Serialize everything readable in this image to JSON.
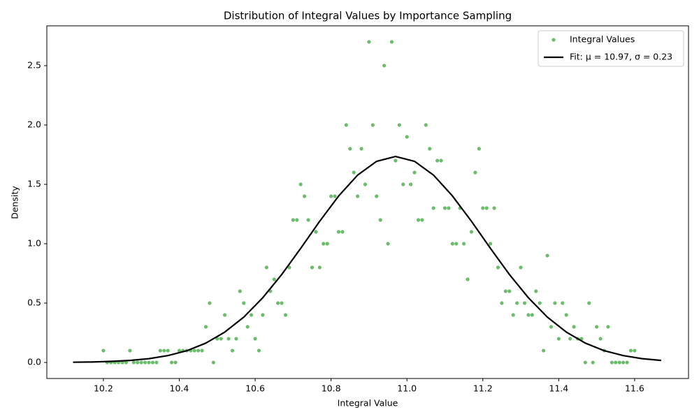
{
  "chart_data": {
    "type": "scatter",
    "title": "Distribution of Integral Values by Importance Sampling",
    "x_label": "Integral Value",
    "y_label": "Density",
    "series": [
      {
        "name": "Integral Values",
        "type": "scatter",
        "color": "#2ca02c",
        "x": [
          10.2,
          10.21,
          10.22,
          10.23,
          10.24,
          10.25,
          10.26,
          10.27,
          10.28,
          10.29,
          10.3,
          10.31,
          10.32,
          10.33,
          10.34,
          10.35,
          10.36,
          10.37,
          10.38,
          10.39,
          10.4,
          10.41,
          10.42,
          10.43,
          10.44,
          10.45,
          10.46,
          10.47,
          10.48,
          10.49,
          10.5,
          10.51,
          10.52,
          10.53,
          10.54,
          10.55,
          10.56,
          10.57,
          10.58,
          10.59,
          10.6,
          10.61,
          10.62,
          10.63,
          10.64,
          10.65,
          10.66,
          10.67,
          10.68,
          10.69,
          10.7,
          10.71,
          10.72,
          10.73,
          10.74,
          10.75,
          10.76,
          10.77,
          10.78,
          10.79,
          10.8,
          10.81,
          10.82,
          10.83,
          10.84,
          10.85,
          10.86,
          10.87,
          10.88,
          10.89,
          10.9,
          10.91,
          10.92,
          10.93,
          10.94,
          10.95,
          10.96,
          10.97,
          10.98,
          10.99,
          11.0,
          11.01,
          11.02,
          11.03,
          11.04,
          11.05,
          11.06,
          11.07,
          11.08,
          11.09,
          11.1,
          11.11,
          11.12,
          11.13,
          11.14,
          11.15,
          11.16,
          11.17,
          11.18,
          11.19,
          11.2,
          11.21,
          11.22,
          11.23,
          11.24,
          11.25,
          11.26,
          11.27,
          11.28,
          11.29,
          11.3,
          11.31,
          11.32,
          11.33,
          11.34,
          11.35,
          11.36,
          11.37,
          11.38,
          11.39,
          11.4,
          11.41,
          11.42,
          11.43,
          11.44,
          11.45,
          11.46,
          11.47,
          11.48,
          11.49,
          11.5,
          11.51,
          11.52,
          11.53,
          11.54,
          11.55,
          11.56,
          11.57,
          11.58,
          11.59,
          11.6
        ],
        "values": [
          0.1,
          0,
          0,
          0,
          0,
          0,
          0,
          0.1,
          0,
          0,
          0,
          0,
          0,
          0,
          0,
          0.1,
          0.1,
          0.1,
          0,
          0,
          0.1,
          0.1,
          0.1,
          0.1,
          0.1,
          0.1,
          0.1,
          0.3,
          0.5,
          0,
          0.2,
          0.2,
          0.4,
          0.2,
          0.1,
          0.2,
          0.6,
          0.5,
          0.3,
          0.4,
          0.2,
          0.1,
          0.4,
          0.8,
          0.6,
          0.7,
          0.5,
          0.5,
          0.4,
          0.8,
          1.2,
          1.2,
          1.5,
          1.4,
          1.2,
          0.8,
          1.1,
          0.8,
          1.0,
          1.0,
          1.4,
          1.4,
          1.1,
          1.1,
          2.0,
          1.8,
          1.6,
          1.4,
          1.8,
          1.5,
          2.7,
          2.0,
          1.4,
          1.2,
          2.5,
          1.0,
          2.7,
          1.7,
          2.0,
          1.5,
          1.9,
          1.5,
          1.6,
          1.2,
          1.2,
          2.0,
          1.8,
          1.3,
          1.7,
          1.7,
          1.3,
          1.3,
          1.0,
          1.0,
          1.3,
          1.0,
          0.7,
          1.1,
          1.6,
          1.8,
          1.3,
          1.3,
          1.0,
          1.3,
          0.8,
          0.5,
          0.6,
          0.6,
          0.4,
          0.5,
          0.8,
          0.5,
          0.4,
          0.4,
          0.6,
          0.5,
          0.1,
          0.9,
          0.3,
          0.5,
          0.2,
          0.5,
          0.4,
          0.2,
          0.3,
          0.2,
          0.2,
          0,
          0.5,
          0,
          0.3,
          0.2,
          0.1,
          0.3,
          0,
          0,
          0,
          0,
          0,
          0.1,
          0.1
        ]
      },
      {
        "name": "Fit: μ = 10.97, σ = 0.23",
        "type": "line",
        "color": "#000000",
        "x": [
          10.12,
          10.17,
          10.22,
          10.27,
          10.32,
          10.37,
          10.42,
          10.47,
          10.52,
          10.57,
          10.62,
          10.67,
          10.72,
          10.77,
          10.82,
          10.87,
          10.92,
          10.97,
          11.02,
          11.07,
          11.12,
          11.17,
          11.22,
          11.27,
          11.32,
          11.37,
          11.42,
          11.47,
          11.52,
          11.57,
          11.62,
          11.67
        ],
        "values": [
          0.002,
          0.004,
          0.009,
          0.017,
          0.032,
          0.058,
          0.099,
          0.163,
          0.256,
          0.382,
          0.545,
          0.741,
          0.961,
          1.189,
          1.402,
          1.578,
          1.694,
          1.735,
          1.694,
          1.578,
          1.402,
          1.189,
          0.961,
          0.741,
          0.545,
          0.382,
          0.256,
          0.163,
          0.099,
          0.058,
          0.032,
          0.017
        ]
      }
    ],
    "xlim": [
      10.051,
      11.742
    ],
    "xticks": [
      10.2,
      10.4,
      10.6,
      10.8,
      {
        "value": 11,
        "label": "11.0"
      },
      11.2,
      11.4,
      11.6
    ],
    "ylim": [
      -0.135,
      2.835
    ],
    "yticks": [
      {
        "value": 0,
        "label": "0.0"
      },
      0.5,
      {
        "value": 1,
        "label": "1.0"
      },
      1.5,
      {
        "value": 2,
        "label": "2.0"
      },
      2.5
    ],
    "legend": "upper right"
  }
}
